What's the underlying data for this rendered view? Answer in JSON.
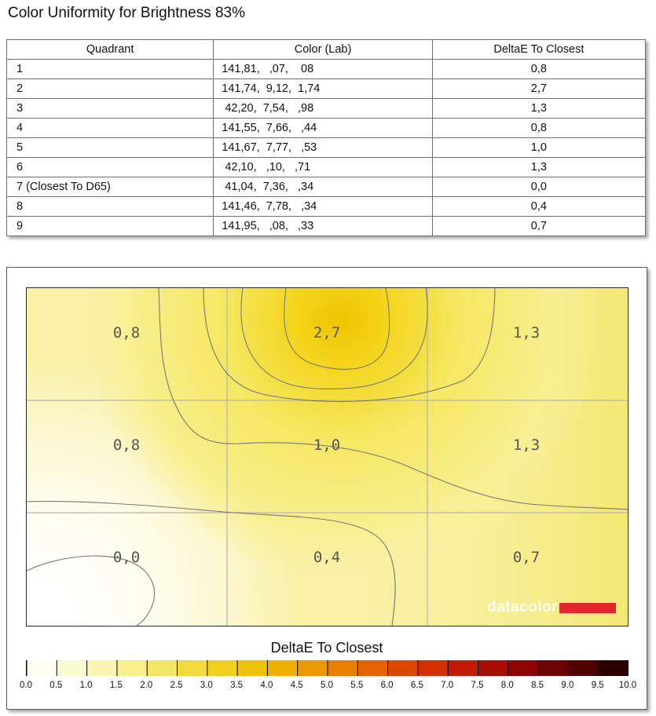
{
  "title": "Color Uniformity for Brightness 83%",
  "table": {
    "headers": [
      "Quadrant",
      "Color (Lab)",
      "DeltaE To Closest"
    ],
    "rows": [
      [
        "1",
        "141,81,   ,07,    08",
        "0,8"
      ],
      [
        "2",
        "141,74,  9,12,  1,74",
        "2,7"
      ],
      [
        "3",
        " 42,20,  7,54,   ,98",
        "1,3"
      ],
      [
        "4",
        "141,55,  7,66,   ,44",
        "0,8"
      ],
      [
        "5",
        "141,67,  7,77,   ,53",
        "1,0"
      ],
      [
        "6",
        " 42,10,   ,10,   ,71",
        "1,3"
      ],
      [
        "7 (Closest To D65)",
        " 41,04,  7,36,   ,34",
        "0,0"
      ],
      [
        "8",
        "141,46,  7,78,   ,34",
        "0,4"
      ],
      [
        "9",
        "141,95,   ,08,   ,33",
        "0,7"
      ]
    ]
  },
  "heatmap": {
    "grid_values": [
      [
        "0,8",
        "2,7",
        "1,3"
      ],
      [
        "0,8",
        "1,0",
        "1,3"
      ],
      [
        "0,0",
        "0,4",
        "0,7"
      ]
    ],
    "logo_text": "datacolor",
    "logo_color": "#e2262b"
  },
  "scale": {
    "title": "DeltaE To Closest",
    "ticks": [
      "0.0",
      "0.5",
      "1.0",
      "1.5",
      "2.0",
      "2.5",
      "3.0",
      "3.5",
      "4.0",
      "4.5",
      "5.0",
      "5.5",
      "6.0",
      "6.5",
      "7.0",
      "7.5",
      "8.0",
      "8.5",
      "9.0",
      "9.5",
      "10.0"
    ],
    "colors": [
      "#fffff0",
      "#fdfbd2",
      "#faf5b0",
      "#f7ee8c",
      "#f4e566",
      "#f2db3e",
      "#f0cf1e",
      "#efc20a",
      "#eeb100",
      "#ec9800",
      "#e87f00",
      "#e36400",
      "#dc4800",
      "#d33000",
      "#c01a00",
      "#a80d00",
      "#8c0500",
      "#6e0200",
      "#4e0000",
      "#2c0000"
    ]
  }
}
